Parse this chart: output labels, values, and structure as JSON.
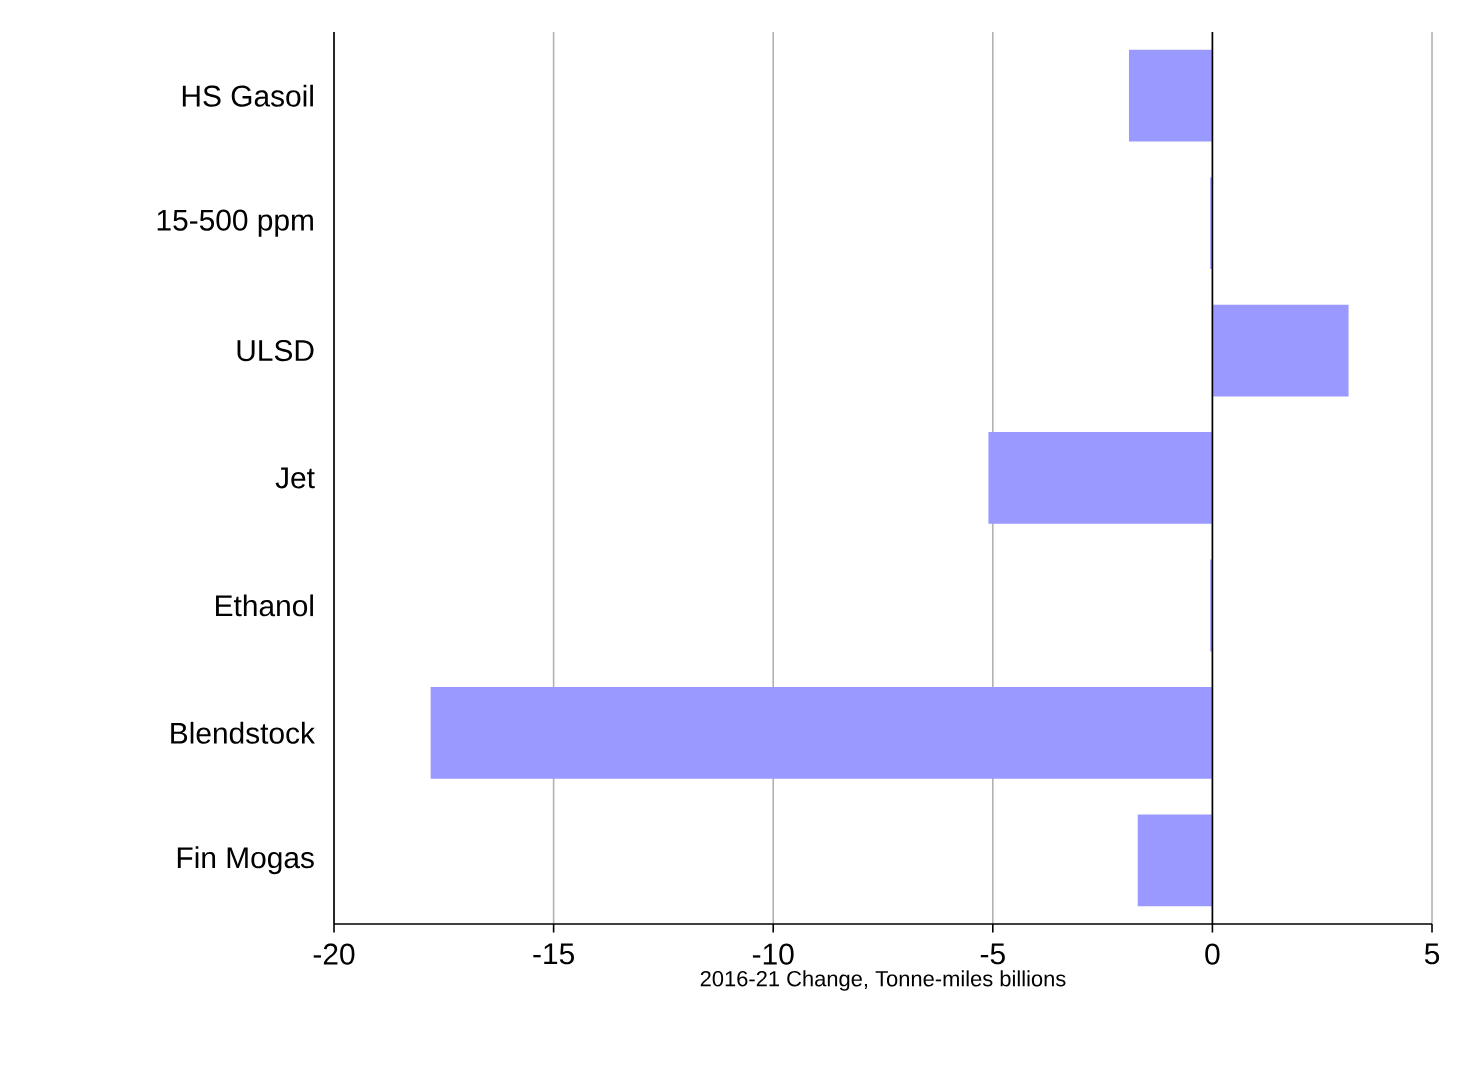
{
  "chart_data": {
    "type": "bar",
    "orientation": "horizontal",
    "xlabel": "2016-21  Change,  Tonne-miles  billions",
    "categories": [
      "HS Gasoil",
      "15-500 ppm",
      "ULSD",
      "Jet",
      "Ethanol",
      "Blendstock",
      "Fin Mogas"
    ],
    "values": [
      -1.9,
      -0.05,
      3.1,
      -5.1,
      -0.05,
      -17.8,
      -1.7
    ],
    "color": "#9999ff",
    "xlim": [
      -20,
      5
    ],
    "xticks": [
      -20,
      -15,
      -10,
      -5,
      0,
      5
    ],
    "grid": "x",
    "ref_lines": [
      {
        "axis": "x",
        "value": 0,
        "color": "#000000"
      }
    ]
  }
}
